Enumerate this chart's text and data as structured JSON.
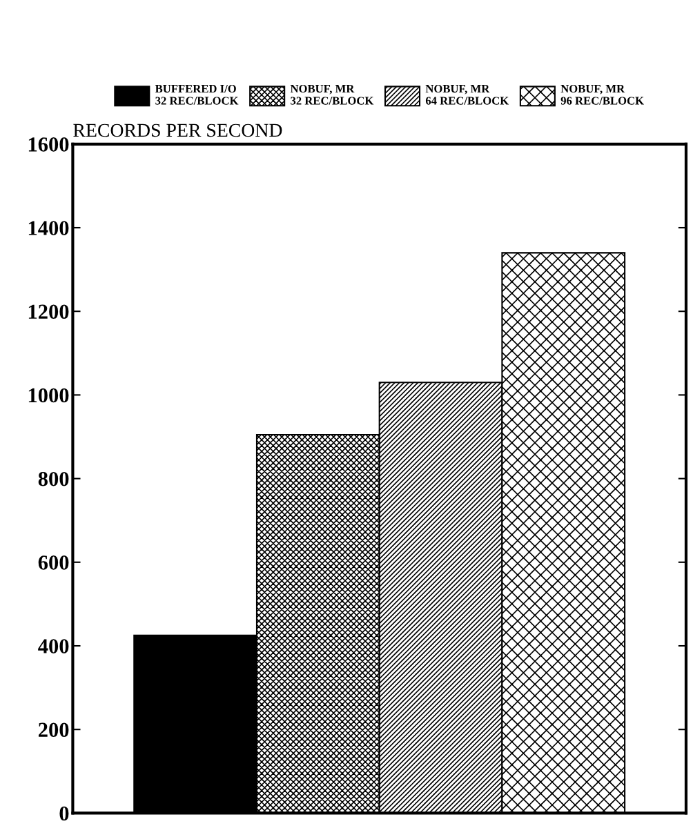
{
  "chart_data": {
    "type": "bar",
    "ylabel": "RECORDS PER SECOND",
    "categories": [
      null,
      null,
      null,
      null
    ],
    "series": [
      {
        "name": "BUFFERED I/O\n32 REC/BLOCK",
        "color": "#000000",
        "values": [
          425,
          null,
          null,
          null
        ]
      },
      {
        "name": "NOBUF, MR\n32 REC/BLOCK",
        "color": "#000000",
        "values": [
          null,
          905,
          null,
          null
        ]
      },
      {
        "name": "NOBUF, MR\n64 REC/BLOCK",
        "color": "#000000",
        "values": [
          null,
          null,
          1030,
          null
        ]
      },
      {
        "name": "NOBUF, MR\n96 REC/BLOCK",
        "color": "#000000",
        "values": [
          null,
          null,
          null,
          1340
        ]
      }
    ],
    "ylim": [
      0,
      1600
    ],
    "yticks": [
      0,
      200,
      400,
      600,
      800,
      1000,
      1200,
      1400,
      1600
    ],
    "grid": false,
    "legend": "top"
  }
}
